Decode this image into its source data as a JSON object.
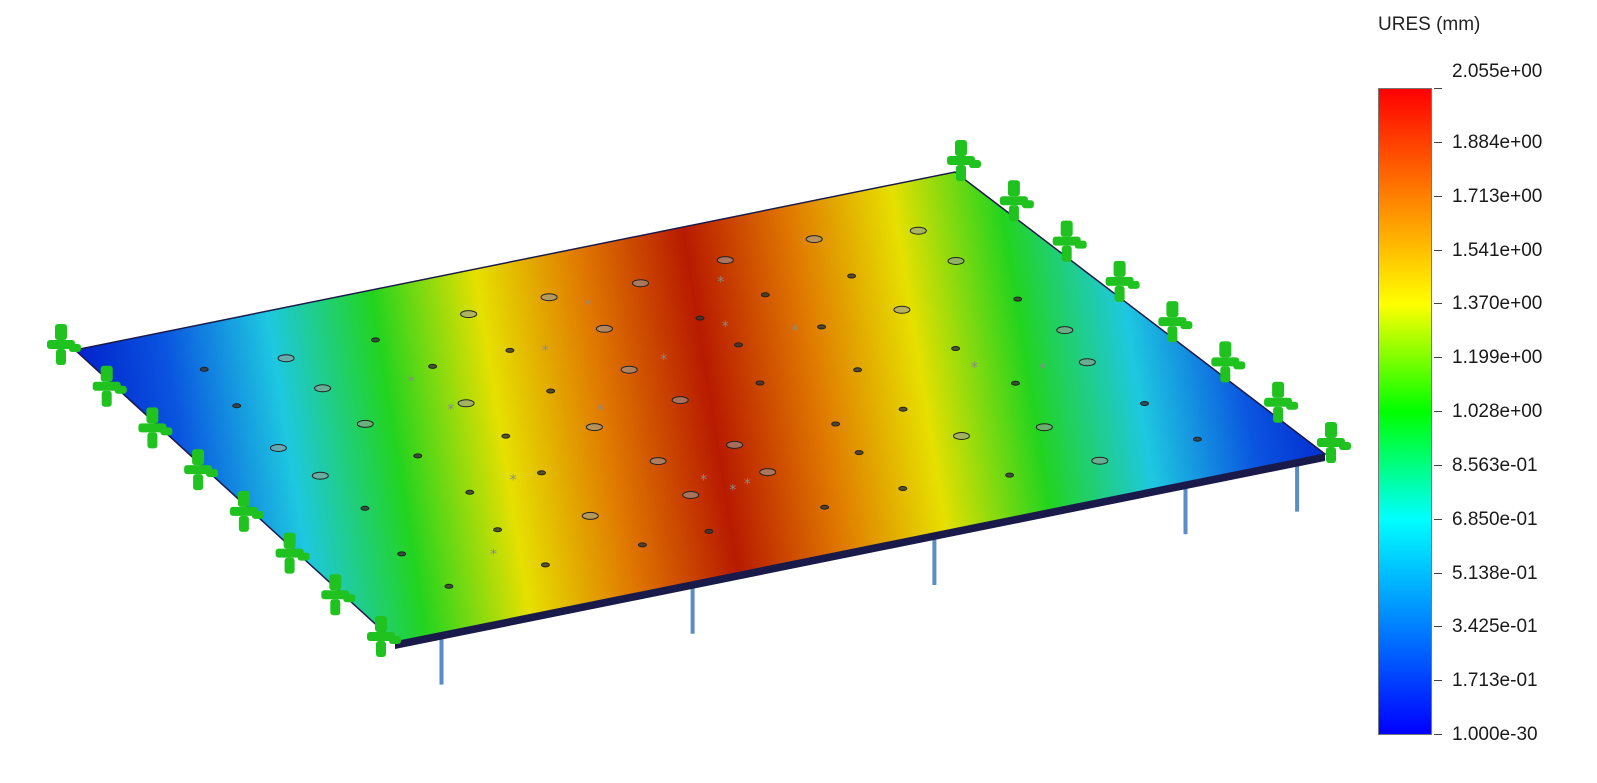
{
  "legend": {
    "title": "URES (mm)",
    "gradient_colors": [
      "#ff0000",
      "#ff8000",
      "#ffff00",
      "#00ff00",
      "#00ffff",
      "#0080ff",
      "#0000ff"
    ],
    "labels": [
      "2.055e+00",
      "1.884e+00",
      "1.713e+00",
      "1.541e+00",
      "1.370e+00",
      "1.199e+00",
      "1.028e+00",
      "8.563e-01",
      "6.850e-01",
      "5.138e-01",
      "3.425e-01",
      "1.713e-01",
      "1.000e-30"
    ]
  },
  "model": {
    "plate_gradient": [
      "#0018c8",
      "#0a55e0",
      "#1ec8e0",
      "#22d41e",
      "#e6e000",
      "#e07800",
      "#b81a00",
      "#e07800",
      "#e6e000",
      "#22d41e",
      "#1ec8e0",
      "#0a55e0",
      "#0018c8"
    ],
    "fixture_color": "#1fc21f",
    "support_color": "#5a8cc6",
    "edge_color": "#1a1a4a"
  }
}
